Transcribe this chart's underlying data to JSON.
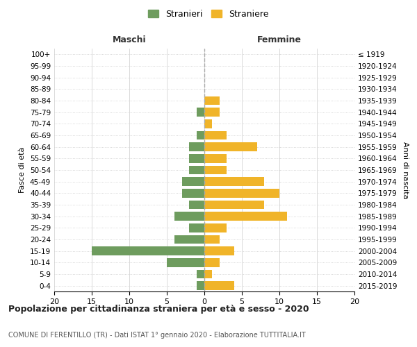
{
  "age_groups_bottom_to_top": [
    "0-4",
    "5-9",
    "10-14",
    "15-19",
    "20-24",
    "25-29",
    "30-34",
    "35-39",
    "40-44",
    "45-49",
    "50-54",
    "55-59",
    "60-64",
    "65-69",
    "70-74",
    "75-79",
    "80-84",
    "85-89",
    "90-94",
    "95-99",
    "100+"
  ],
  "birth_years_bottom_to_top": [
    "2015-2019",
    "2010-2014",
    "2005-2009",
    "2000-2004",
    "1995-1999",
    "1990-1994",
    "1985-1989",
    "1980-1984",
    "1975-1979",
    "1970-1974",
    "1965-1969",
    "1960-1964",
    "1955-1959",
    "1950-1954",
    "1945-1949",
    "1940-1944",
    "1935-1939",
    "1930-1934",
    "1925-1929",
    "1920-1924",
    "≤ 1919"
  ],
  "males_bottom_to_top": [
    1,
    1,
    5,
    15,
    4,
    2,
    4,
    2,
    3,
    3,
    2,
    2,
    2,
    1,
    0,
    1,
    0,
    0,
    0,
    0,
    0
  ],
  "females_bottom_to_top": [
    4,
    1,
    2,
    4,
    2,
    3,
    11,
    8,
    10,
    8,
    3,
    3,
    7,
    3,
    1,
    2,
    2,
    0,
    0,
    0,
    0
  ],
  "male_color": "#6e9c5e",
  "female_color": "#f0b429",
  "title": "Popolazione per cittadinanza straniera per età e sesso - 2020",
  "subtitle": "COMUNE DI FERENTILLO (TR) - Dati ISTAT 1° gennaio 2020 - Elaborazione TUTTITALIA.IT",
  "label_maschi": "Maschi",
  "label_femmine": "Femmine",
  "ylabel_left": "Fasce di età",
  "ylabel_right": "Anni di nascita",
  "legend_male": "Stranieri",
  "legend_female": "Straniere",
  "xlim": 20,
  "background_color": "#ffffff",
  "grid_color": "#cccccc",
  "grid_dotted_color": "#cccccc"
}
